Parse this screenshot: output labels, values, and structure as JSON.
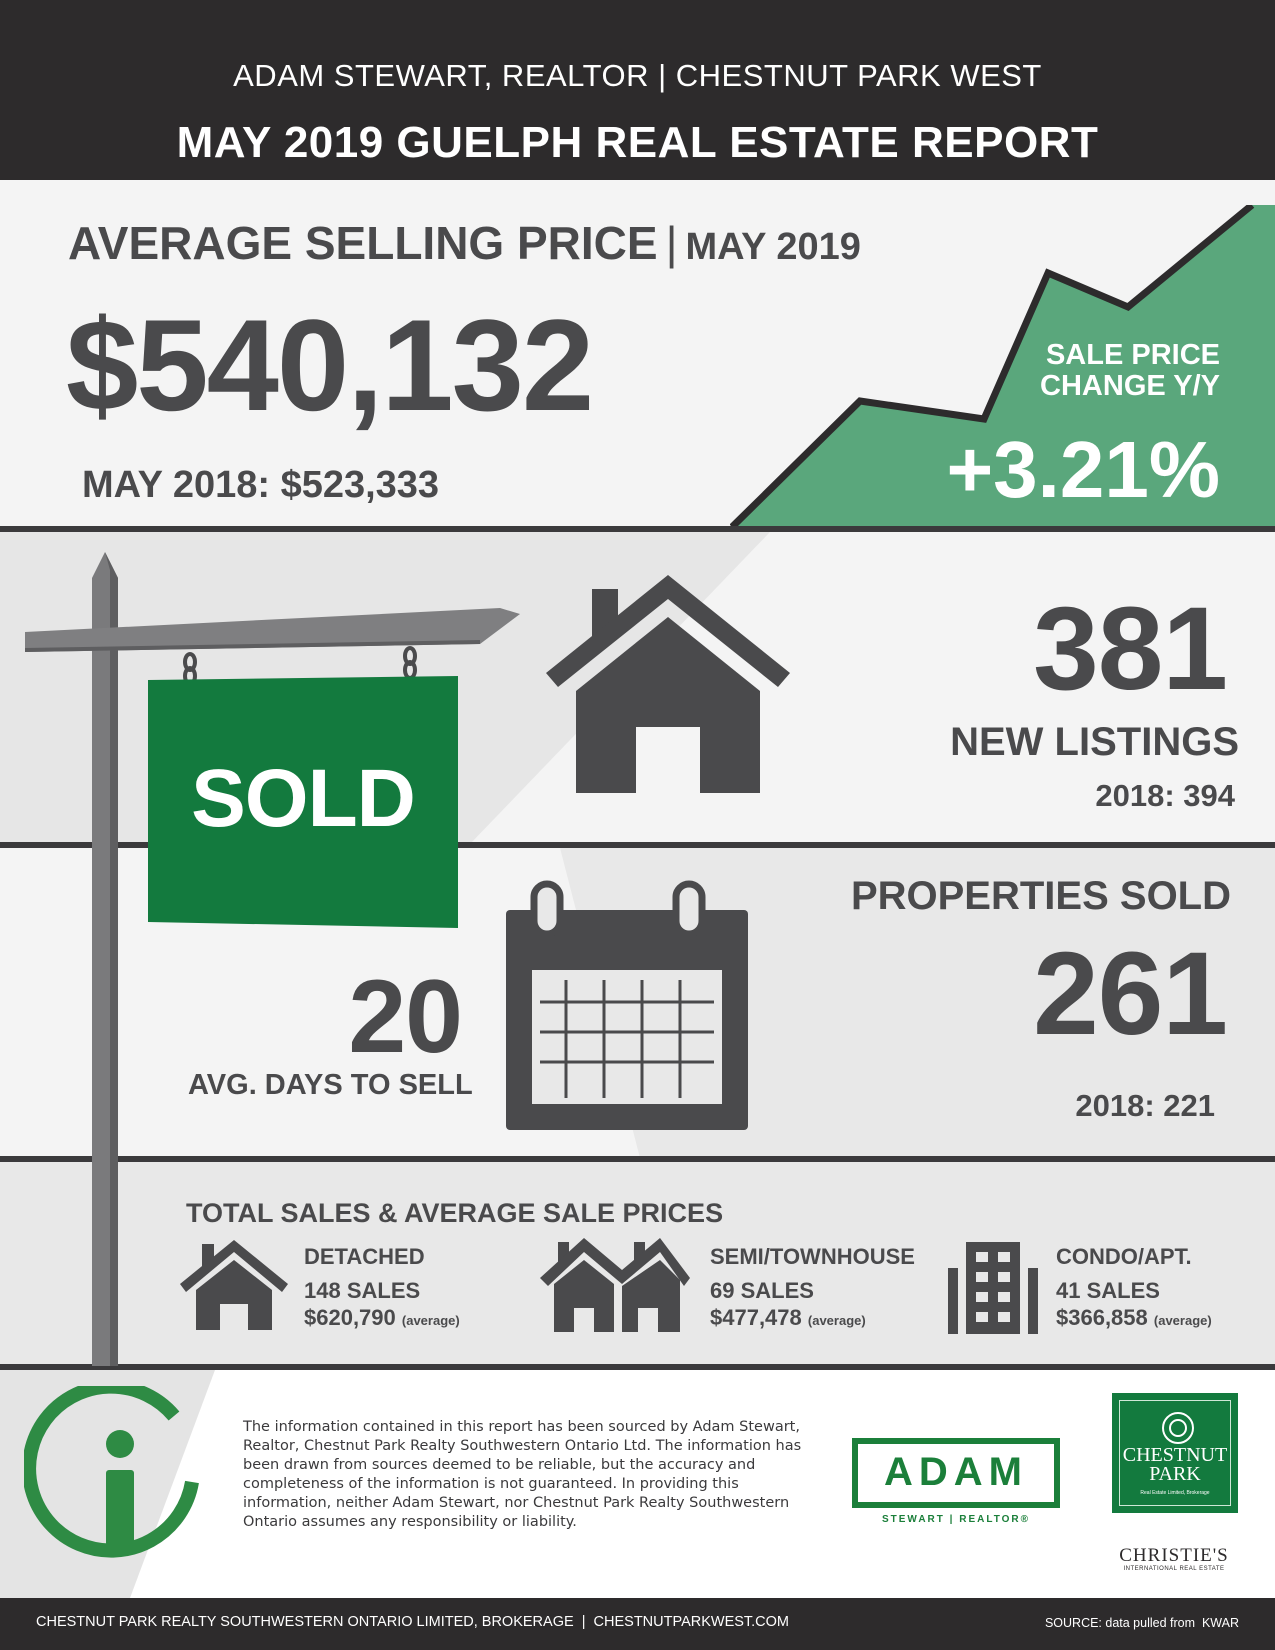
{
  "header": {
    "agent_line": "ADAM STEWART, REALTOR | CHESTNUT PARK WEST",
    "title": "MAY 2019 GUELPH REAL ESTATE REPORT"
  },
  "price": {
    "heading": "AVERAGE SELLING PRICE",
    "separator": "|",
    "month": "MAY 2019",
    "value": "$540,132",
    "previous": "MAY 2018: $523,333",
    "change_label_line1": "SALE PRICE",
    "change_label_line2": "CHANGE Y/Y",
    "change_value": "+3.21%"
  },
  "listings": {
    "value": "381",
    "label": "NEW LISTINGS",
    "previous": "2018: 394"
  },
  "sold": {
    "sign_text": "SOLD",
    "label": "PROPERTIES SOLD",
    "value": "261",
    "previous": "2018: 221"
  },
  "days": {
    "value": "20",
    "label": "AVG. DAYS TO SELL"
  },
  "totals": {
    "heading": "TOTAL SALES & AVERAGE SALE PRICES",
    "categories": [
      {
        "name": "DETACHED",
        "sales": "148 SALES",
        "price": "$620,790",
        "avg": "(average)",
        "icon": "house-icon"
      },
      {
        "name": "SEMI/TOWNHOUSE",
        "sales": "69 SALES",
        "price": "$477,478",
        "avg": "(average)",
        "icon": "townhouse-icon"
      },
      {
        "name": "CONDO/APT.",
        "sales": "41 SALES",
        "price": "$366,858",
        "avg": "(average)",
        "icon": "condo-building-icon"
      }
    ]
  },
  "info": {
    "disclaimer": "The information contained in this report has been sourced by Adam Stewart, Realtor, Chestnut Park Realty Southwestern Ontario Ltd. The information has been drawn from sources deemed to be reliable, but the accuracy and completeness of the information is not guaranteed. In providing this information, neither Adam Stewart, nor Chestnut Park Realty Southwestern Ontario assumes any responsibility or liability."
  },
  "logos": {
    "adam": "ADAM",
    "adam_sub": "STEWART | REALTOR®",
    "chestnut_park": "CHESTNUT PARK",
    "chestnut_park_tag": "Real Estate Limited, Brokerage",
    "christies": "CHRISTIE'S",
    "christies_sub": "INTERNATIONAL REAL ESTATE"
  },
  "footer": {
    "left": "CHESTNUT PARK REALTY SOUTHWESTERN ONTARIO LIMITED, BROKERAGE  |  CHESTNUTPARKWEST.COM",
    "right": "SOURCE: data pulled from  KWAR"
  },
  "colors": {
    "dark": "#2d2b2c",
    "text": "#4a4a4c",
    "accent_green": "#5aa77c",
    "sign_green": "#137a3e"
  }
}
